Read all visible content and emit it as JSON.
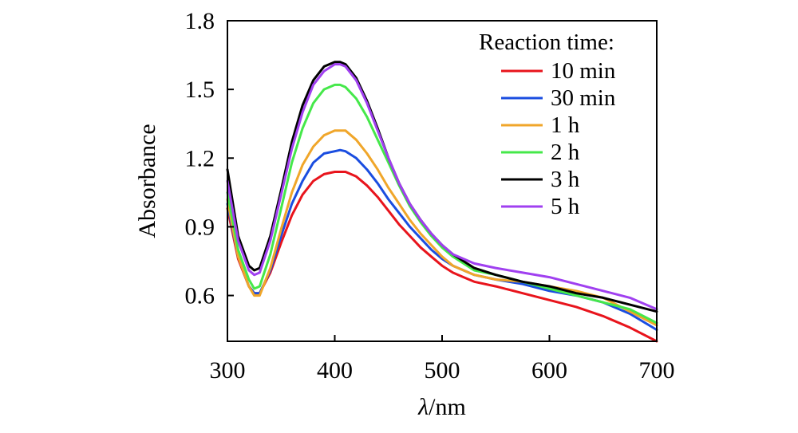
{
  "chart_data": {
    "type": "line",
    "title": "",
    "xlabel_symbol": "λ",
    "xlabel_unit": "/nm",
    "ylabel": "Absorbance",
    "xlim": [
      300,
      700
    ],
    "ylim": [
      0.4,
      1.8
    ],
    "x_ticks": [
      300,
      400,
      500,
      600,
      700
    ],
    "x_tick_labels": [
      "300",
      "400",
      "500",
      "600",
      "700"
    ],
    "y_ticks": [
      0.6,
      0.9,
      1.2,
      1.5,
      1.8
    ],
    "y_tick_labels": [
      "0.6",
      "0.9",
      "1.2",
      "1.5",
      "1.8"
    ],
    "legend_title": "Reaction time:",
    "legend_position": "top-right",
    "x": [
      300,
      310,
      320,
      325,
      330,
      340,
      350,
      360,
      370,
      380,
      390,
      400,
      405,
      410,
      420,
      430,
      440,
      450,
      460,
      470,
      480,
      490,
      500,
      510,
      520,
      530,
      550,
      575,
      600,
      625,
      650,
      675,
      700
    ],
    "series": [
      {
        "name": "10 min",
        "color": "#e8141c",
        "values": [
          0.98,
          0.76,
          0.64,
          0.61,
          0.61,
          0.7,
          0.83,
          0.95,
          1.04,
          1.1,
          1.13,
          1.14,
          1.14,
          1.14,
          1.12,
          1.08,
          1.03,
          0.97,
          0.91,
          0.86,
          0.81,
          0.77,
          0.73,
          0.7,
          0.68,
          0.66,
          0.64,
          0.61,
          0.58,
          0.55,
          0.51,
          0.46,
          0.4
        ]
      },
      {
        "name": "30 min",
        "color": "#1a4de0",
        "values": [
          1.0,
          0.77,
          0.64,
          0.61,
          0.61,
          0.71,
          0.86,
          1.0,
          1.1,
          1.18,
          1.22,
          1.23,
          1.235,
          1.23,
          1.2,
          1.15,
          1.09,
          1.02,
          0.96,
          0.9,
          0.85,
          0.8,
          0.76,
          0.73,
          0.71,
          0.69,
          0.67,
          0.65,
          0.62,
          0.6,
          0.57,
          0.52,
          0.45
        ]
      },
      {
        "name": "1 h",
        "color": "#f0a62a",
        "values": [
          1.02,
          0.77,
          0.64,
          0.6,
          0.6,
          0.72,
          0.89,
          1.05,
          1.17,
          1.25,
          1.3,
          1.32,
          1.32,
          1.32,
          1.28,
          1.22,
          1.15,
          1.07,
          1.0,
          0.93,
          0.87,
          0.82,
          0.77,
          0.73,
          0.71,
          0.69,
          0.67,
          0.66,
          0.64,
          0.62,
          0.59,
          0.53,
          0.47
        ]
      },
      {
        "name": "2 h",
        "color": "#45e84a",
        "values": [
          1.05,
          0.8,
          0.67,
          0.63,
          0.64,
          0.78,
          0.98,
          1.18,
          1.33,
          1.44,
          1.5,
          1.52,
          1.52,
          1.51,
          1.46,
          1.38,
          1.28,
          1.18,
          1.08,
          0.99,
          0.92,
          0.86,
          0.81,
          0.77,
          0.74,
          0.71,
          0.69,
          0.66,
          0.63,
          0.6,
          0.57,
          0.54,
          0.48
        ]
      },
      {
        "name": "3 h",
        "color": "#000000",
        "values": [
          1.15,
          0.86,
          0.73,
          0.71,
          0.72,
          0.86,
          1.06,
          1.27,
          1.43,
          1.54,
          1.6,
          1.62,
          1.62,
          1.61,
          1.55,
          1.45,
          1.33,
          1.2,
          1.09,
          1.0,
          0.93,
          0.87,
          0.82,
          0.78,
          0.75,
          0.72,
          0.69,
          0.66,
          0.64,
          0.61,
          0.59,
          0.56,
          0.53
        ]
      },
      {
        "name": "5 h",
        "color": "#a040f0",
        "values": [
          1.1,
          0.84,
          0.71,
          0.69,
          0.7,
          0.84,
          1.04,
          1.24,
          1.4,
          1.52,
          1.58,
          1.61,
          1.61,
          1.6,
          1.54,
          1.44,
          1.32,
          1.2,
          1.09,
          1.0,
          0.93,
          0.87,
          0.82,
          0.78,
          0.76,
          0.74,
          0.72,
          0.7,
          0.68,
          0.65,
          0.62,
          0.59,
          0.54
        ]
      }
    ]
  }
}
